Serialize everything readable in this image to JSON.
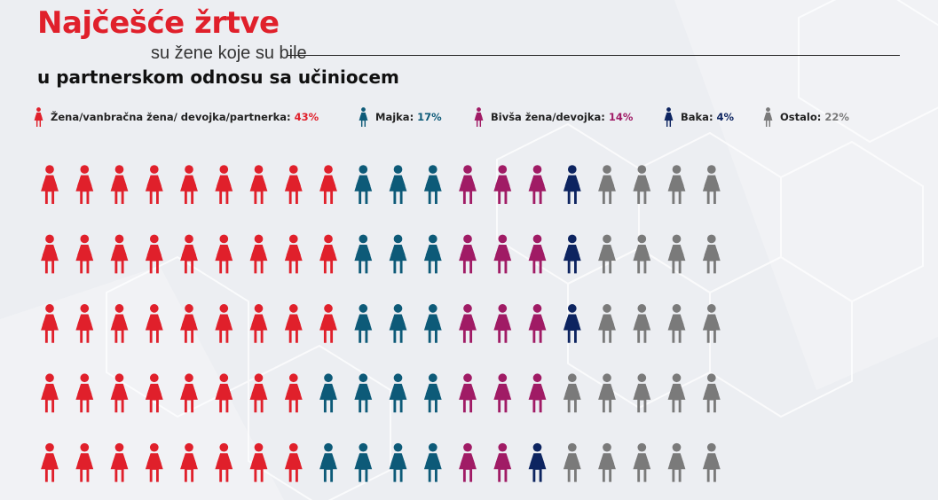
{
  "header": {
    "title": "Najčešće žrtve",
    "subtitle_1": "su žene koje su bile",
    "subtitle_2": "u partnerskom odnosu sa učiniocem"
  },
  "chart_data": {
    "type": "pictogram",
    "unit": "1 figure = 1%",
    "total_icons": 100,
    "grid": {
      "rows": 5,
      "columns": 25
    },
    "series": [
      {
        "name": "Žena/vanbračna žena/ devojka/partnerka",
        "value": 43,
        "percent_label": "43%",
        "color": "#e0202b"
      },
      {
        "name": "Majka",
        "value": 17,
        "percent_label": "17%",
        "color": "#0d5a78"
      },
      {
        "name": "Bivša žena/devojka",
        "value": 14,
        "percent_label": "14%",
        "color": "#a01b65"
      },
      {
        "name": "Baka",
        "value": 4,
        "percent_label": "4%",
        "color": "#0d2460"
      },
      {
        "name": "Ostalo",
        "value": 22,
        "percent_label": "22%",
        "color": "#7a7a7a"
      }
    ]
  },
  "colors": {
    "title": "#e0202b",
    "background": "#eceef2"
  }
}
